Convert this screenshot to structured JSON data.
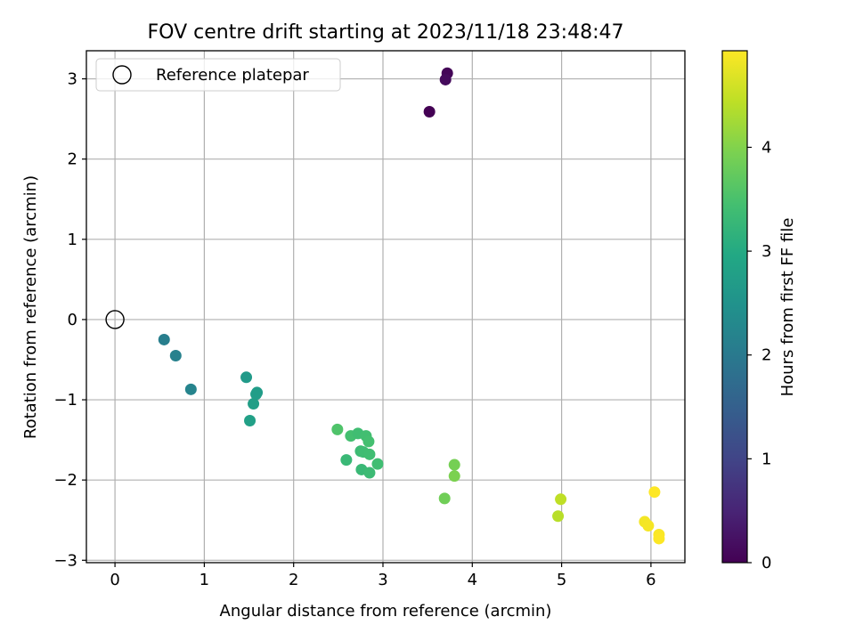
{
  "chart_data": {
    "type": "scatter",
    "title": "FOV centre drift starting at 2023/11/18 23:48:47",
    "xlabel": "Angular distance from reference (arcmin)",
    "ylabel": "Rotation from reference (arcmin)",
    "xlim": [
      -0.32,
      6.38
    ],
    "ylim": [
      -3.03,
      3.35
    ],
    "xticks": [
      0,
      1,
      2,
      3,
      4,
      5,
      6
    ],
    "yticks": [
      -3,
      -2,
      -1,
      0,
      1,
      2,
      3
    ],
    "xtick_labels": [
      "0",
      "1",
      "2",
      "3",
      "4",
      "5",
      "6"
    ],
    "ytick_labels": [
      "−3",
      "−2",
      "−1",
      "0",
      "1",
      "2",
      "3"
    ],
    "grid": true,
    "legend": {
      "position": "top-left",
      "entries": [
        "Reference platepar"
      ]
    },
    "reference_point": {
      "x": 0,
      "y": 0
    },
    "colorbar": {
      "label": "Hours from first FF file",
      "colormap": "viridis",
      "range": [
        0,
        4.93
      ],
      "ticks": [
        0,
        1,
        2,
        3,
        4
      ],
      "tick_labels": [
        "0",
        "1",
        "2",
        "3",
        "4"
      ]
    },
    "points": [
      {
        "x": 3.72,
        "y": 3.07,
        "hours": 0.05
      },
      {
        "x": 3.7,
        "y": 2.99,
        "hours": 0.12
      },
      {
        "x": 3.52,
        "y": 2.59,
        "hours": 0.0
      },
      {
        "x": 0.55,
        "y": -0.25,
        "hours": 2.1
      },
      {
        "x": 0.68,
        "y": -0.45,
        "hours": 2.15
      },
      {
        "x": 0.85,
        "y": -0.87,
        "hours": 2.2
      },
      {
        "x": 1.47,
        "y": -0.72,
        "hours": 2.65
      },
      {
        "x": 1.59,
        "y": -0.91,
        "hours": 2.7
      },
      {
        "x": 1.58,
        "y": -0.93,
        "hours": 2.72
      },
      {
        "x": 1.55,
        "y": -1.05,
        "hours": 2.75
      },
      {
        "x": 1.51,
        "y": -1.26,
        "hours": 2.78
      },
      {
        "x": 2.49,
        "y": -1.37,
        "hours": 3.55
      },
      {
        "x": 2.64,
        "y": -1.45,
        "hours": 3.45
      },
      {
        "x": 2.72,
        "y": -1.42,
        "hours": 3.4
      },
      {
        "x": 2.81,
        "y": -1.45,
        "hours": 3.42
      },
      {
        "x": 2.84,
        "y": -1.52,
        "hours": 3.45
      },
      {
        "x": 2.75,
        "y": -1.64,
        "hours": 3.35
      },
      {
        "x": 2.78,
        "y": -1.65,
        "hours": 3.38
      },
      {
        "x": 2.85,
        "y": -1.68,
        "hours": 3.4
      },
      {
        "x": 2.59,
        "y": -1.75,
        "hours": 3.3
      },
      {
        "x": 2.76,
        "y": -1.87,
        "hours": 3.3
      },
      {
        "x": 2.85,
        "y": -1.91,
        "hours": 3.35
      },
      {
        "x": 2.94,
        "y": -1.8,
        "hours": 3.4
      },
      {
        "x": 3.8,
        "y": -1.81,
        "hours": 3.9
      },
      {
        "x": 3.8,
        "y": -1.95,
        "hours": 3.95
      },
      {
        "x": 3.69,
        "y": -2.23,
        "hours": 3.85
      },
      {
        "x": 4.99,
        "y": -2.24,
        "hours": 4.45
      },
      {
        "x": 4.96,
        "y": -2.45,
        "hours": 4.4
      },
      {
        "x": 6.04,
        "y": -2.15,
        "hours": 4.93
      },
      {
        "x": 5.93,
        "y": -2.52,
        "hours": 4.85
      },
      {
        "x": 5.97,
        "y": -2.57,
        "hours": 4.87
      },
      {
        "x": 6.09,
        "y": -2.68,
        "hours": 4.9
      },
      {
        "x": 6.09,
        "y": -2.73,
        "hours": 4.92
      }
    ]
  }
}
